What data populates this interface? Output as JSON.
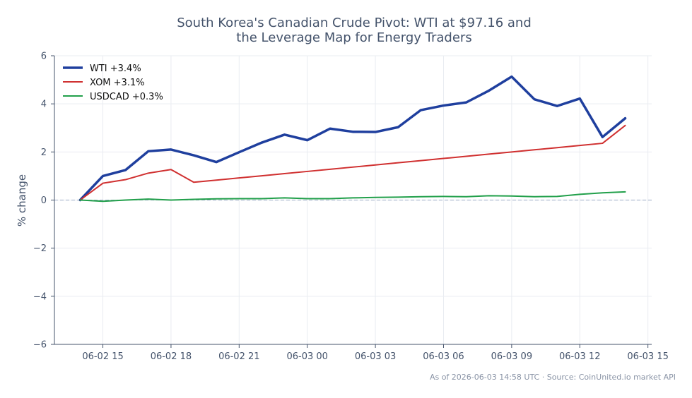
{
  "chart_data": {
    "type": "line",
    "title_lines": [
      "South Korea's Canadian Crude Pivot: WTI at $97.16 and",
      "the Leverage Map for Energy Traders"
    ],
    "ylabel": "% change",
    "ylim": [
      -6,
      6
    ],
    "yticks": [
      -6,
      -4,
      -2,
      0,
      2,
      4,
      6
    ],
    "ytick_labels": [
      "−6",
      "−4",
      "−2",
      "0",
      "2",
      "4",
      "6"
    ],
    "xlim": [
      "2026-06-02 12:52",
      "2026-06-03 15:10"
    ],
    "xticks": [
      "2026-06-02 15:00",
      "2026-06-02 18:00",
      "2026-06-02 21:00",
      "2026-06-03 00:00",
      "2026-06-03 03:00",
      "2026-06-03 06:00",
      "2026-06-03 09:00",
      "2026-06-03 12:00",
      "2026-06-03 15:00"
    ],
    "xtick_labels": [
      "06-02 15",
      "06-02 18",
      "06-02 21",
      "06-03 00",
      "06-03 03",
      "06-03 06",
      "06-03 09",
      "06-03 12",
      "06-03 15"
    ],
    "x": [
      "2026-06-02 14:00",
      "2026-06-02 15:00",
      "2026-06-02 16:00",
      "2026-06-02 17:00",
      "2026-06-02 18:00",
      "2026-06-02 19:00",
      "2026-06-02 20:00",
      "2026-06-02 21:00",
      "2026-06-02 22:00",
      "2026-06-02 23:00",
      "2026-06-03 00:00",
      "2026-06-03 01:00",
      "2026-06-03 02:00",
      "2026-06-03 03:00",
      "2026-06-03 04:00",
      "2026-06-03 05:00",
      "2026-06-03 06:00",
      "2026-06-03 07:00",
      "2026-06-03 08:00",
      "2026-06-03 09:00",
      "2026-06-03 10:00",
      "2026-06-03 11:00",
      "2026-06-03 12:00",
      "2026-06-03 13:00",
      "2026-06-03 14:00"
    ],
    "series": [
      {
        "name": "WTI +3.4%",
        "color": "#1f3f9e",
        "values": [
          0,
          1.0,
          1.25,
          2.03,
          2.1,
          1.86,
          1.58,
          1.99,
          2.39,
          2.72,
          2.49,
          2.97,
          2.84,
          2.83,
          3.03,
          3.74,
          3.93,
          4.06,
          4.55,
          5.13,
          4.19,
          3.91,
          4.22,
          2.62,
          3.4
        ]
      },
      {
        "name": "XOM +3.1%",
        "color": "#d03030",
        "values": [
          0,
          0.7,
          0.85,
          1.12,
          1.27,
          0.74,
          0.83,
          0.92,
          1.01,
          1.1,
          1.19,
          1.28,
          1.37,
          1.46,
          1.55,
          1.64,
          1.73,
          1.82,
          1.91,
          2.0,
          2.09,
          2.18,
          2.27,
          2.36,
          3.1
        ]
      },
      {
        "name": "USDCAD +0.3%",
        "color": "#22a04b",
        "values": [
          0,
          -0.05,
          0.0,
          0.04,
          0.0,
          0.03,
          0.05,
          0.06,
          0.06,
          0.09,
          0.06,
          0.06,
          0.09,
          0.11,
          0.12,
          0.14,
          0.15,
          0.14,
          0.18,
          0.17,
          0.14,
          0.15,
          0.24,
          0.3,
          0.34
        ]
      }
    ],
    "reference_line": {
      "y": 0,
      "style": "dashed",
      "color": "#9aaac4"
    },
    "grid": true,
    "legend": "top-left"
  },
  "footer": {
    "text": "As of 2026-06-03 14:58 UTC · Source: CoinUnited.io market API"
  }
}
